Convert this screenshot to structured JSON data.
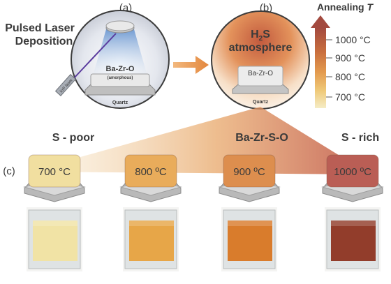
{
  "panels": {
    "a": {
      "label": "(a)",
      "title_line1": "Pulsed Laser",
      "title_line2": "Deposition",
      "film": "Ba-Zr-O",
      "film_note": "(amorphous)",
      "substrate": "Quartz",
      "laser": "KrF laser"
    },
    "b": {
      "label": "(b)",
      "gas_main": "H",
      "gas_sub": "2",
      "gas_tail": "S",
      "line2": "atmosphere",
      "film": "Ba-Zr-O",
      "substrate": "Quartz"
    },
    "c": {
      "label": "(c)",
      "left": "S - poor",
      "center": "Ba-Zr-S-O",
      "right": "S - rich"
    }
  },
  "temperature_scale": {
    "title": "Annealing ",
    "title_var": "T",
    "ticks": [
      "1000 °C",
      "900 °C",
      "800 °C",
      "700 °C"
    ],
    "colors": [
      "#a34a3f",
      "#c96f3e",
      "#e39a4e",
      "#efc978",
      "#f3e7bc"
    ]
  },
  "samples": [
    {
      "label": "700 °C",
      "top": "#f1dfa0",
      "photo": "#f2e3a0"
    },
    {
      "label": "800 ºC",
      "top": "#e9ac5b",
      "photo": "#e7a13b"
    },
    {
      "label": "900 ºC",
      "top": "#dd8e4e",
      "photo": "#d8731c"
    },
    {
      "label": "1000 ºC",
      "top": "#ba5e55",
      "photo": "#8b2f1b"
    }
  ]
}
